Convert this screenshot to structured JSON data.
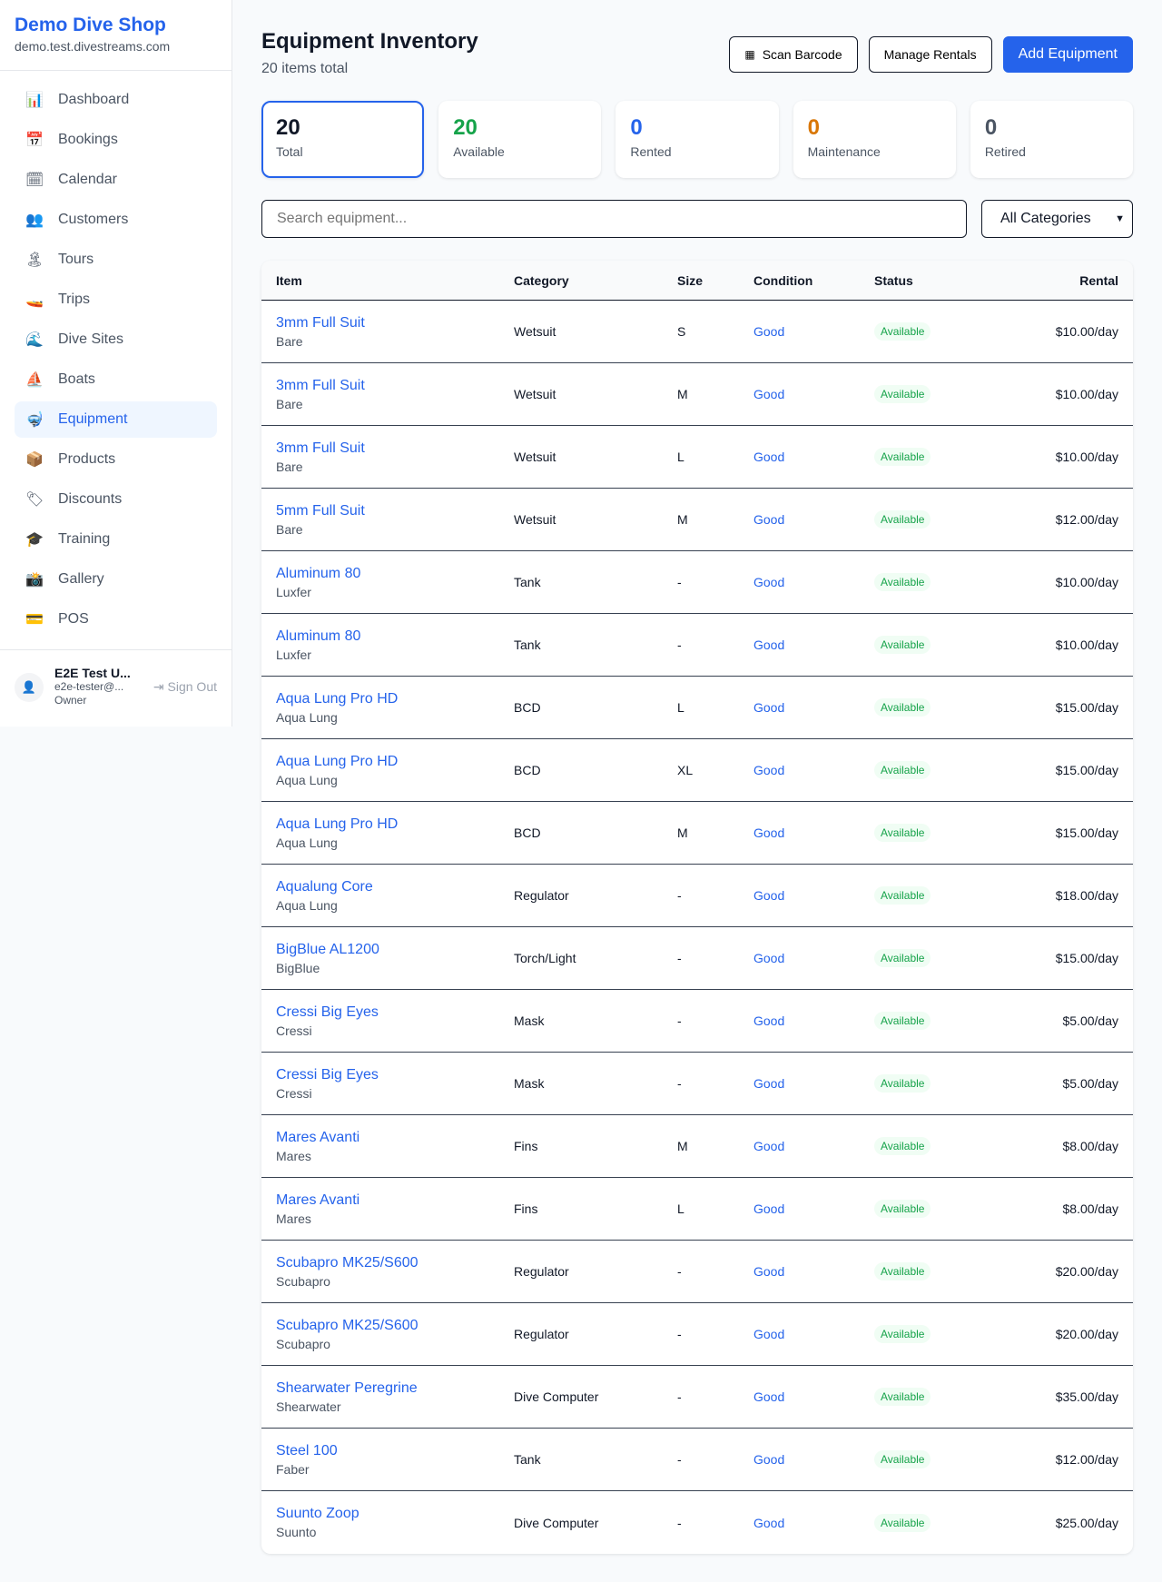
{
  "sidebar": {
    "shop_name": "Demo Dive Shop",
    "domain": "demo.test.divestreams.com",
    "items": [
      {
        "label": "Dashboard",
        "icon": "📊"
      },
      {
        "label": "Bookings",
        "icon": "📅"
      },
      {
        "label": "Calendar",
        "icon": "🗓"
      },
      {
        "label": "Customers",
        "icon": "👥"
      },
      {
        "label": "Tours",
        "icon": "🏝"
      },
      {
        "label": "Trips",
        "icon": "🚤"
      },
      {
        "label": "Dive Sites",
        "icon": "🌊"
      },
      {
        "label": "Boats",
        "icon": "⛵"
      },
      {
        "label": "Equipment",
        "icon": "🤿",
        "active": true
      },
      {
        "label": "Products",
        "icon": "📦"
      },
      {
        "label": "Discounts",
        "icon": "🏷"
      },
      {
        "label": "Training",
        "icon": "🎓"
      },
      {
        "label": "Gallery",
        "icon": "📸"
      },
      {
        "label": "POS",
        "icon": "💳"
      }
    ],
    "user": {
      "name": "E2E Test U...",
      "email": "e2e-tester@...",
      "role": "Owner",
      "sign_out": "Sign Out"
    }
  },
  "header": {
    "title": "Equipment Inventory",
    "subtitle": "20 items total",
    "scan_label": "Scan Barcode",
    "manage_label": "Manage Rentals",
    "add_label": "Add Equipment"
  },
  "stats": [
    {
      "value": "20",
      "label": "Total",
      "color": "#111827"
    },
    {
      "value": "20",
      "label": "Available",
      "color": "#16a34a"
    },
    {
      "value": "0",
      "label": "Rented",
      "color": "#2563eb"
    },
    {
      "value": "0",
      "label": "Maintenance",
      "color": "#d97706"
    },
    {
      "value": "0",
      "label": "Retired",
      "color": "#4b5563"
    }
  ],
  "filters": {
    "search_placeholder": "Search equipment...",
    "category": "All Categories"
  },
  "table": {
    "columns": [
      "Item",
      "Category",
      "Size",
      "Condition",
      "Status",
      "Rental"
    ],
    "rows": [
      [
        "3mm Full Suit",
        "Bare",
        "Wetsuit",
        "S",
        "Good",
        "Available",
        "$10.00/day"
      ],
      [
        "3mm Full Suit",
        "Bare",
        "Wetsuit",
        "M",
        "Good",
        "Available",
        "$10.00/day"
      ],
      [
        "3mm Full Suit",
        "Bare",
        "Wetsuit",
        "L",
        "Good",
        "Available",
        "$10.00/day"
      ],
      [
        "5mm Full Suit",
        "Bare",
        "Wetsuit",
        "M",
        "Good",
        "Available",
        "$12.00/day"
      ],
      [
        "Aluminum 80",
        "Luxfer",
        "Tank",
        "-",
        "Good",
        "Available",
        "$10.00/day"
      ],
      [
        "Aluminum 80",
        "Luxfer",
        "Tank",
        "-",
        "Good",
        "Available",
        "$10.00/day"
      ],
      [
        "Aqua Lung Pro HD",
        "Aqua Lung",
        "BCD",
        "L",
        "Good",
        "Available",
        "$15.00/day"
      ],
      [
        "Aqua Lung Pro HD",
        "Aqua Lung",
        "BCD",
        "XL",
        "Good",
        "Available",
        "$15.00/day"
      ],
      [
        "Aqua Lung Pro HD",
        "Aqua Lung",
        "BCD",
        "M",
        "Good",
        "Available",
        "$15.00/day"
      ],
      [
        "Aqualung Core",
        "Aqua Lung",
        "Regulator",
        "-",
        "Good",
        "Available",
        "$18.00/day"
      ],
      [
        "BigBlue AL1200",
        "BigBlue",
        "Torch/Light",
        "-",
        "Good",
        "Available",
        "$15.00/day"
      ],
      [
        "Cressi Big Eyes",
        "Cressi",
        "Mask",
        "-",
        "Good",
        "Available",
        "$5.00/day"
      ],
      [
        "Cressi Big Eyes",
        "Cressi",
        "Mask",
        "-",
        "Good",
        "Available",
        "$5.00/day"
      ],
      [
        "Mares Avanti",
        "Mares",
        "Fins",
        "M",
        "Good",
        "Available",
        "$8.00/day"
      ],
      [
        "Mares Avanti",
        "Mares",
        "Fins",
        "L",
        "Good",
        "Available",
        "$8.00/day"
      ],
      [
        "Scubapro MK25/S600",
        "Scubapro",
        "Regulator",
        "-",
        "Good",
        "Available",
        "$20.00/day"
      ],
      [
        "Scubapro MK25/S600",
        "Scubapro",
        "Regulator",
        "-",
        "Good",
        "Available",
        "$20.00/day"
      ],
      [
        "Shearwater Peregrine",
        "Shearwater",
        "Dive Computer",
        "-",
        "Good",
        "Available",
        "$35.00/day"
      ],
      [
        "Steel 100",
        "Faber",
        "Tank",
        "-",
        "Good",
        "Available",
        "$12.00/day"
      ],
      [
        "Suunto Zoop",
        "Suunto",
        "Dive Computer",
        "-",
        "Good",
        "Available",
        "$25.00/day"
      ]
    ]
  }
}
